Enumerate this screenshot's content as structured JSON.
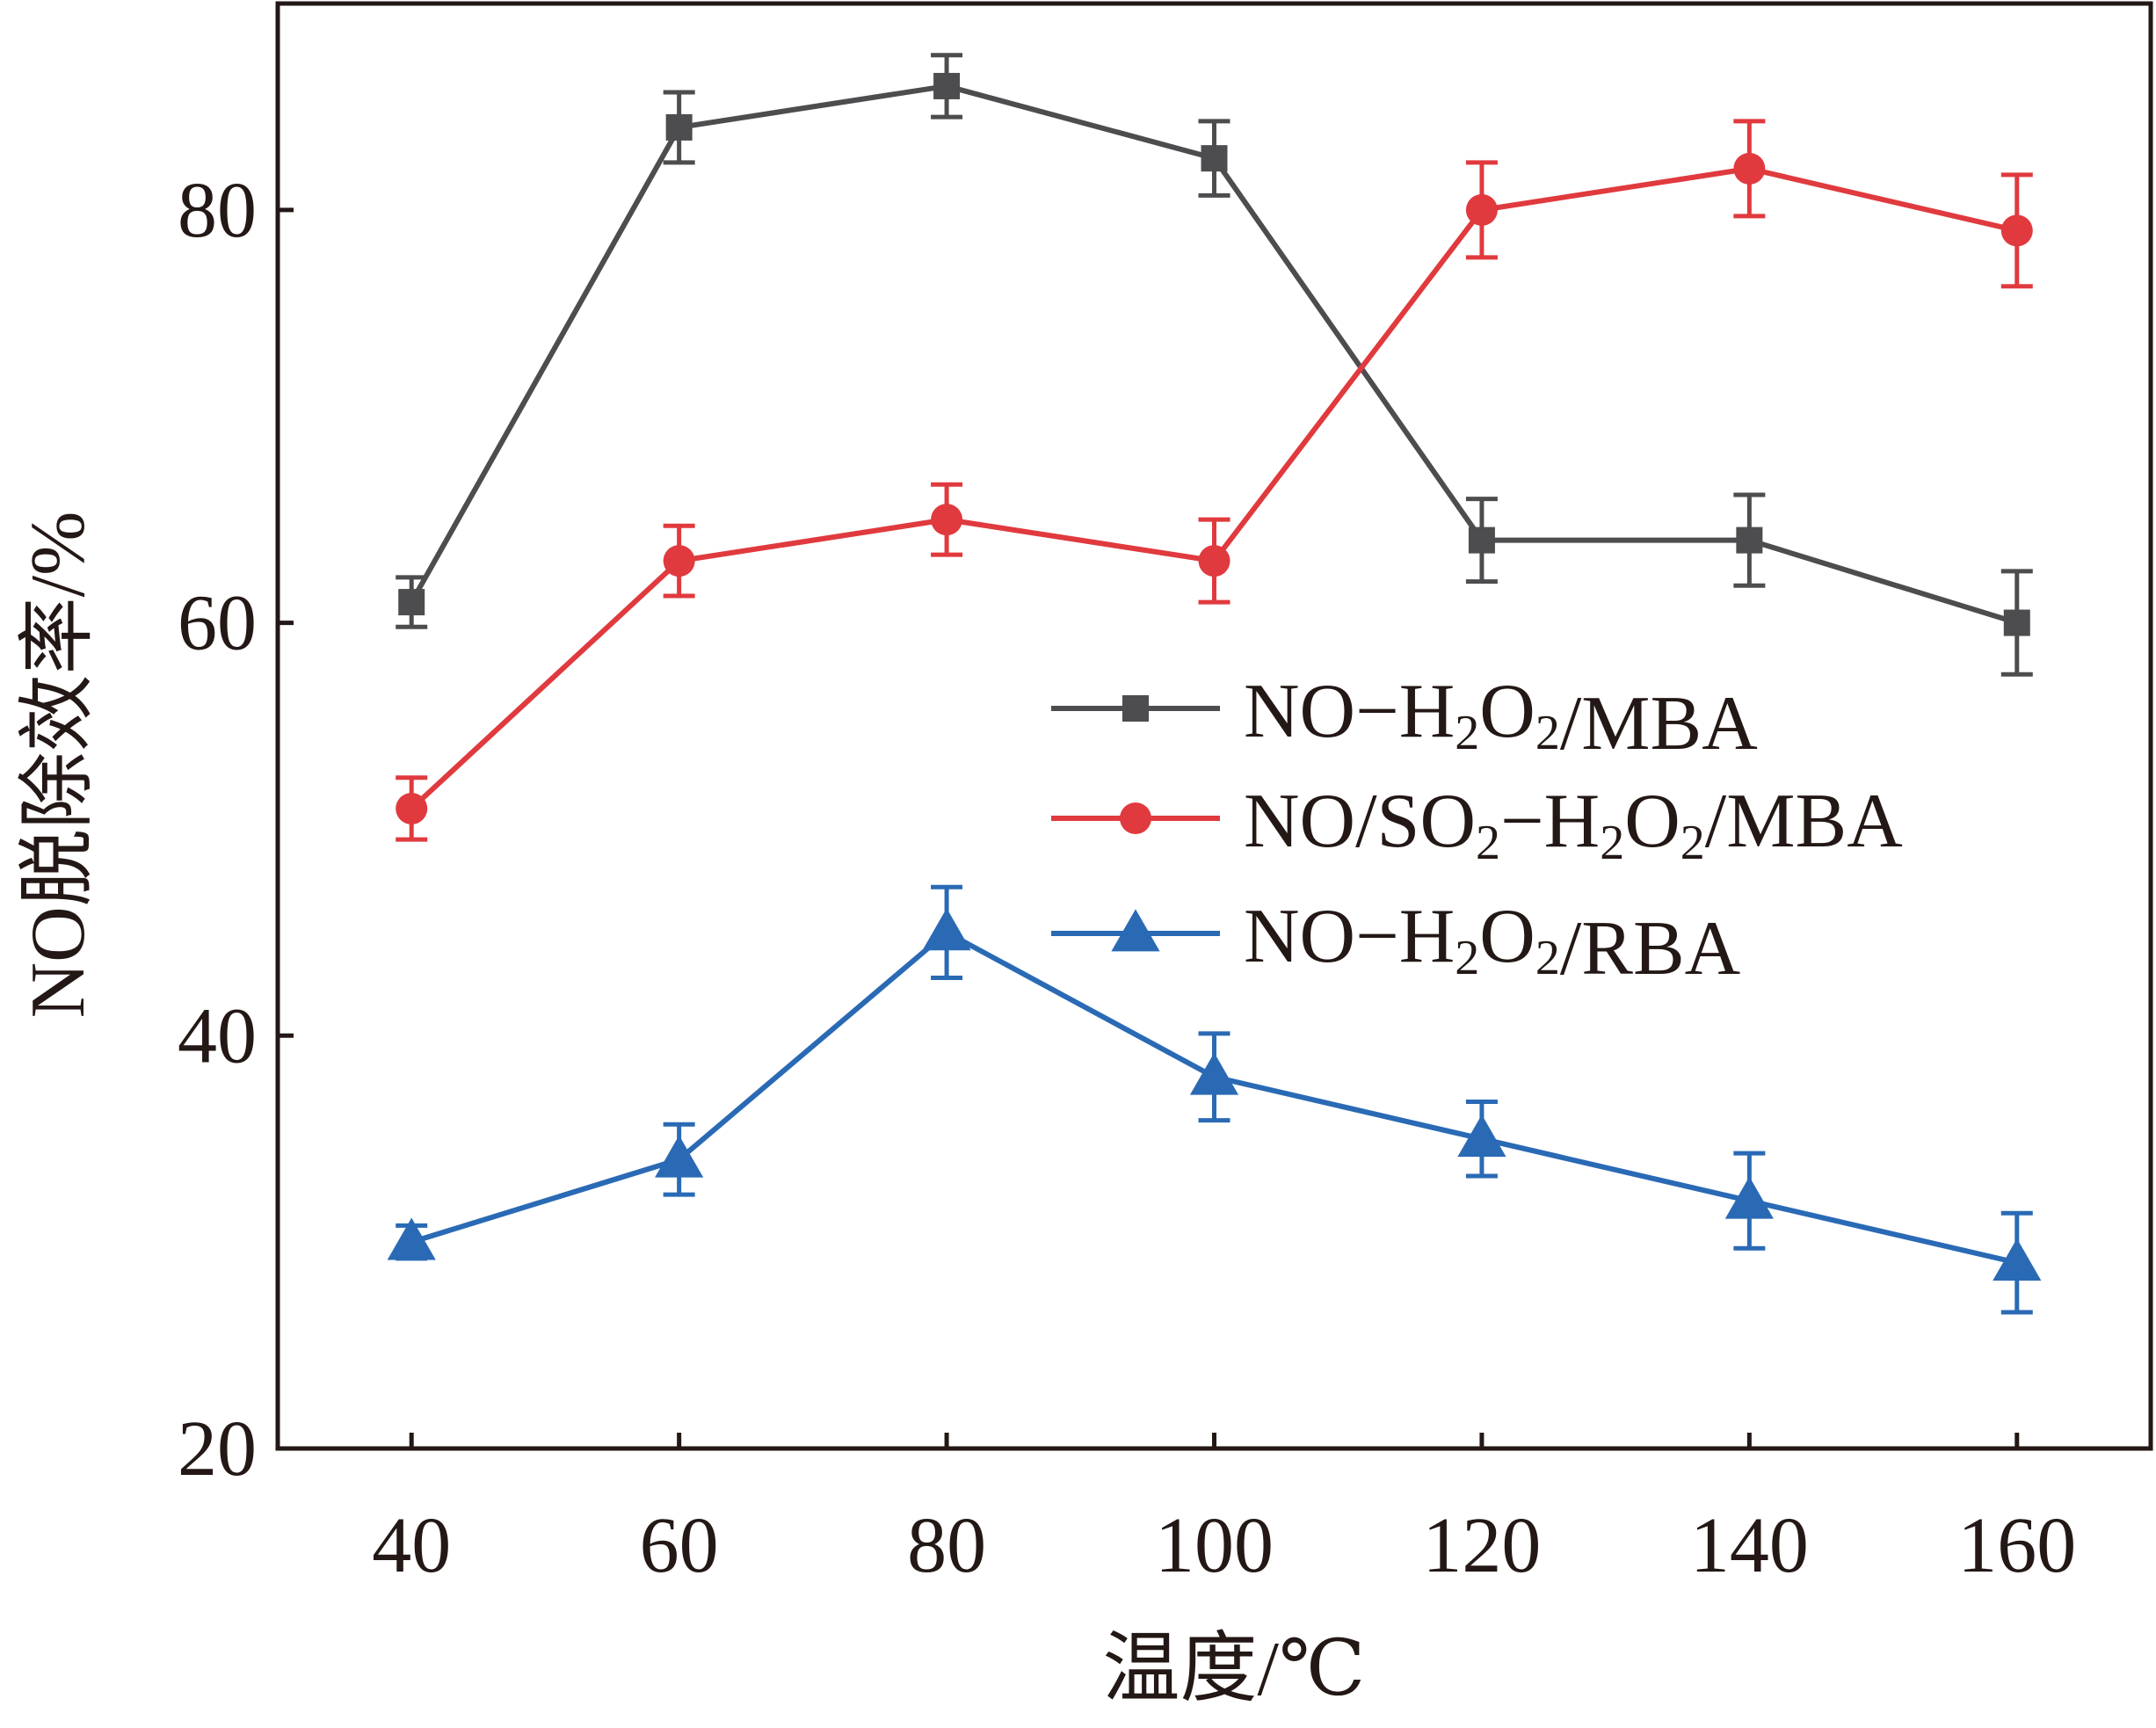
{
  "chart_data": {
    "type": "line",
    "title": "",
    "xlabel": "温度/℃",
    "ylabel": "NO脱除效率/%",
    "x": [
      40,
      60,
      80,
      100,
      120,
      140,
      160
    ],
    "x_ticks": [
      "40",
      "60",
      "80",
      "100",
      "120",
      "140",
      "160"
    ],
    "y_ticks": [
      "20",
      "40",
      "60",
      "80"
    ],
    "xlim": [
      30,
      170
    ],
    "ylim": [
      20,
      90
    ],
    "grid": false,
    "legend_position": "right",
    "series": [
      {
        "name": "NO−H2O2/MBA",
        "legend": {
          "main": "NO−H",
          "sub1": "2",
          "mid": "O",
          "sub2": "2",
          "tail": "/MBA"
        },
        "color": "#4d4d4f",
        "marker": "square",
        "values": [
          61.0,
          84.0,
          86.0,
          82.5,
          64.0,
          64.0,
          60.0
        ],
        "errors": [
          1.2,
          1.7,
          1.5,
          1.8,
          2.0,
          2.2,
          2.5
        ]
      },
      {
        "name": "NO/SO2−H2O2/MBA",
        "legend": {
          "main": "NO/SO",
          "sub1": "2",
          "mid": "−H",
          "sub2": "2",
          "mid2": "O",
          "sub3": "2",
          "tail": "/MBA"
        },
        "color": "#e03a3e",
        "marker": "circle",
        "values": [
          51.0,
          63.0,
          65.0,
          63.0,
          80.0,
          82.0,
          79.0
        ],
        "errors": [
          1.5,
          1.7,
          1.7,
          2.0,
          2.3,
          2.3,
          2.7
        ]
      },
      {
        "name": "NO−H2O2/RBA",
        "legend": {
          "main": "NO−H",
          "sub1": "2",
          "mid": "O",
          "sub2": "2",
          "tail": "/RBA"
        },
        "color": "#2a6ab5",
        "marker": "triangle",
        "values": [
          30.0,
          34.0,
          45.0,
          38.0,
          35.0,
          32.0,
          29.0
        ],
        "errors": [
          0.8,
          1.7,
          2.2,
          2.1,
          1.8,
          2.3,
          2.4
        ]
      }
    ]
  }
}
